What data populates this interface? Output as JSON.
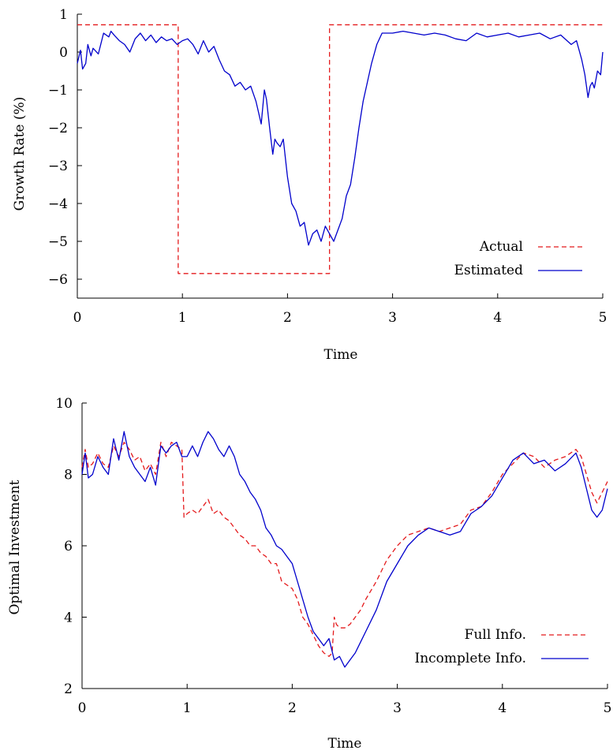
{
  "chart_data": [
    {
      "type": "line",
      "xlabel": "Time",
      "ylabel": "Growth Rate (%)",
      "xlim": [
        0,
        5
      ],
      "ylim": [
        -6.5,
        1
      ],
      "xticks": [
        "0",
        "1",
        "2",
        "3",
        "4",
        "5"
      ],
      "yticks": [
        "1",
        "0",
        "−1",
        "−2",
        "−3",
        "−4",
        "−5",
        "−6"
      ],
      "ytick_values": [
        1,
        0,
        -1,
        -2,
        -3,
        -4,
        -5,
        -6
      ],
      "grid": false,
      "legend_position": "bottom-right",
      "series": [
        {
          "name": "Actual",
          "color": "#e41a1c",
          "style": "dashed",
          "x": [
            0,
            0.96,
            0.96,
            2.4,
            2.4,
            5
          ],
          "y": [
            0.72,
            0.72,
            -5.85,
            -5.85,
            0.72,
            0.72
          ]
        },
        {
          "name": "Estimated",
          "color": "#0000cc",
          "style": "solid",
          "x": [
            0,
            0.03,
            0.05,
            0.08,
            0.1,
            0.13,
            0.15,
            0.2,
            0.25,
            0.3,
            0.32,
            0.35,
            0.4,
            0.45,
            0.5,
            0.55,
            0.6,
            0.65,
            0.7,
            0.75,
            0.8,
            0.85,
            0.9,
            0.95,
            1.0,
            1.05,
            1.1,
            1.15,
            1.2,
            1.25,
            1.3,
            1.35,
            1.4,
            1.45,
            1.5,
            1.55,
            1.6,
            1.65,
            1.7,
            1.75,
            1.78,
            1.8,
            1.83,
            1.86,
            1.88,
            1.9,
            1.93,
            1.96,
            2.0,
            2.04,
            2.08,
            2.12,
            2.16,
            2.2,
            2.24,
            2.28,
            2.32,
            2.36,
            2.4,
            2.44,
            2.48,
            2.52,
            2.56,
            2.6,
            2.64,
            2.68,
            2.72,
            2.76,
            2.8,
            2.85,
            2.9,
            3.0,
            3.1,
            3.2,
            3.3,
            3.4,
            3.5,
            3.6,
            3.7,
            3.8,
            3.9,
            4.0,
            4.1,
            4.2,
            4.3,
            4.4,
            4.5,
            4.6,
            4.7,
            4.75,
            4.8,
            4.83,
            4.86,
            4.88,
            4.9,
            4.92,
            4.95,
            4.98,
            5.0
          ],
          "y": [
            -0.3,
            0.05,
            -0.45,
            -0.3,
            0.2,
            -0.1,
            0.1,
            -0.05,
            0.5,
            0.4,
            0.55,
            0.45,
            0.3,
            0.2,
            0.0,
            0.35,
            0.5,
            0.3,
            0.45,
            0.25,
            0.4,
            0.3,
            0.35,
            0.2,
            0.3,
            0.35,
            0.2,
            -0.05,
            0.3,
            0.0,
            0.15,
            -0.2,
            -0.5,
            -0.6,
            -0.9,
            -0.8,
            -1.0,
            -0.9,
            -1.3,
            -1.9,
            -1.0,
            -1.25,
            -2.0,
            -2.7,
            -2.3,
            -2.4,
            -2.5,
            -2.3,
            -3.3,
            -4.0,
            -4.2,
            -4.6,
            -4.5,
            -5.1,
            -4.8,
            -4.7,
            -5.0,
            -4.6,
            -4.8,
            -5.0,
            -4.7,
            -4.4,
            -3.8,
            -3.5,
            -2.8,
            -2.0,
            -1.3,
            -0.8,
            -0.3,
            0.2,
            0.5,
            0.5,
            0.55,
            0.5,
            0.45,
            0.5,
            0.45,
            0.35,
            0.3,
            0.5,
            0.4,
            0.45,
            0.5,
            0.4,
            0.45,
            0.5,
            0.35,
            0.45,
            0.2,
            0.3,
            -0.2,
            -0.6,
            -1.2,
            -0.9,
            -0.8,
            -0.95,
            -0.5,
            -0.6,
            0.0
          ]
        }
      ]
    },
    {
      "type": "line",
      "xlabel": "Time",
      "ylabel": "Optimal Investment",
      "xlim": [
        0,
        5
      ],
      "ylim": [
        2,
        10
      ],
      "xticks": [
        "0",
        "1",
        "2",
        "3",
        "4",
        "5"
      ],
      "yticks": [
        "2",
        "4",
        "6",
        "8",
        "10"
      ],
      "ytick_values": [
        2,
        4,
        6,
        8,
        10
      ],
      "grid": false,
      "legend_position": "bottom-right",
      "series": [
        {
          "name": "Full Info.",
          "color": "#e41a1c",
          "style": "dashed",
          "x": [
            0,
            0.03,
            0.06,
            0.1,
            0.15,
            0.2,
            0.25,
            0.3,
            0.35,
            0.4,
            0.45,
            0.5,
            0.55,
            0.6,
            0.65,
            0.7,
            0.75,
            0.8,
            0.85,
            0.9,
            0.95,
            0.97,
            1.0,
            1.05,
            1.1,
            1.15,
            1.2,
            1.25,
            1.3,
            1.35,
            1.4,
            1.45,
            1.5,
            1.55,
            1.6,
            1.65,
            1.7,
            1.75,
            1.8,
            1.85,
            1.9,
            1.95,
            2.0,
            2.05,
            2.1,
            2.15,
            2.2,
            2.25,
            2.3,
            2.35,
            2.38,
            2.4,
            2.42,
            2.45,
            2.5,
            2.55,
            2.6,
            2.65,
            2.7,
            2.8,
            2.9,
            3.0,
            3.1,
            3.2,
            3.3,
            3.4,
            3.5,
            3.6,
            3.7,
            3.8,
            3.9,
            4.0,
            4.1,
            4.2,
            4.3,
            4.4,
            4.5,
            4.6,
            4.7,
            4.75,
            4.8,
            4.85,
            4.9,
            4.95,
            5.0
          ],
          "y": [
            8.2,
            8.7,
            8.2,
            8.3,
            8.6,
            8.3,
            8.2,
            8.8,
            8.5,
            8.9,
            8.7,
            8.4,
            8.5,
            8.1,
            8.3,
            8.0,
            8.9,
            8.5,
            8.9,
            8.8,
            8.7,
            6.8,
            6.9,
            7.0,
            6.9,
            7.1,
            7.3,
            6.9,
            7.0,
            6.8,
            6.7,
            6.5,
            6.3,
            6.2,
            6.0,
            6.0,
            5.8,
            5.7,
            5.5,
            5.5,
            5.0,
            4.9,
            4.8,
            4.5,
            4.0,
            3.8,
            3.5,
            3.2,
            3.0,
            2.9,
            3.0,
            4.0,
            3.8,
            3.7,
            3.7,
            3.8,
            4.0,
            4.2,
            4.5,
            5.0,
            5.6,
            6.0,
            6.3,
            6.4,
            6.5,
            6.4,
            6.5,
            6.6,
            7.0,
            7.1,
            7.5,
            8.0,
            8.3,
            8.6,
            8.5,
            8.2,
            8.4,
            8.5,
            8.7,
            8.5,
            8.0,
            7.5,
            7.2,
            7.5,
            7.8
          ]
        },
        {
          "name": "Incomplete Info.",
          "color": "#0000cc",
          "style": "solid",
          "x": [
            0,
            0.03,
            0.06,
            0.1,
            0.15,
            0.2,
            0.25,
            0.3,
            0.35,
            0.4,
            0.45,
            0.5,
            0.55,
            0.6,
            0.65,
            0.7,
            0.75,
            0.8,
            0.85,
            0.9,
            0.95,
            1.0,
            1.05,
            1.1,
            1.15,
            1.2,
            1.25,
            1.3,
            1.35,
            1.4,
            1.45,
            1.5,
            1.55,
            1.6,
            1.65,
            1.7,
            1.75,
            1.8,
            1.85,
            1.9,
            1.95,
            2.0,
            2.05,
            2.1,
            2.15,
            2.2,
            2.25,
            2.3,
            2.35,
            2.4,
            2.45,
            2.5,
            2.55,
            2.6,
            2.65,
            2.7,
            2.8,
            2.9,
            3.0,
            3.1,
            3.2,
            3.3,
            3.4,
            3.5,
            3.6,
            3.7,
            3.8,
            3.9,
            4.0,
            4.1,
            4.2,
            4.3,
            4.4,
            4.5,
            4.6,
            4.7,
            4.75,
            4.8,
            4.85,
            4.9,
            4.95,
            5.0
          ],
          "y": [
            8.0,
            8.6,
            7.9,
            8.0,
            8.5,
            8.2,
            8.0,
            9.0,
            8.4,
            9.2,
            8.5,
            8.2,
            8.0,
            7.8,
            8.2,
            7.7,
            8.8,
            8.6,
            8.8,
            8.9,
            8.5,
            8.5,
            8.8,
            8.5,
            8.9,
            9.2,
            9.0,
            8.7,
            8.5,
            8.8,
            8.5,
            8.0,
            7.8,
            7.5,
            7.3,
            7.0,
            6.5,
            6.3,
            6.0,
            5.9,
            5.7,
            5.5,
            5.0,
            4.5,
            4.0,
            3.6,
            3.4,
            3.2,
            3.4,
            2.8,
            2.9,
            2.6,
            2.8,
            3.0,
            3.3,
            3.6,
            4.2,
            5.0,
            5.5,
            6.0,
            6.3,
            6.5,
            6.4,
            6.3,
            6.4,
            6.9,
            7.1,
            7.4,
            7.9,
            8.4,
            8.6,
            8.3,
            8.4,
            8.1,
            8.3,
            8.6,
            8.2,
            7.6,
            7.0,
            6.8,
            7.0,
            7.6
          ]
        }
      ]
    }
  ]
}
